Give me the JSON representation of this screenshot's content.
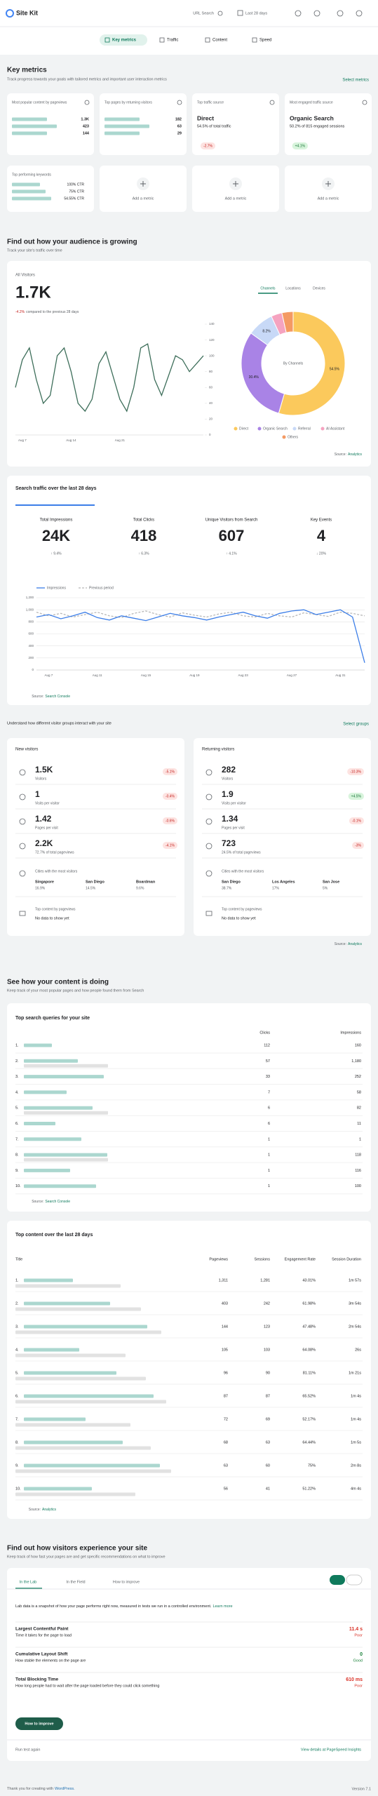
{
  "header": {
    "logo": "Site Kit",
    "url_search": "URL Search",
    "date_range": "Last 28 days"
  },
  "nav": [
    "Key metrics",
    "Traffic",
    "Content",
    "Speed"
  ],
  "key_metrics": {
    "title": "Key metrics",
    "subtitle": "Track progress towards your goals with tailored metrics and important user interaction metrics",
    "action": "Select metrics",
    "popular_content": {
      "title": "Most popular content by pageviews",
      "values": [
        "1.3K",
        "423",
        "144"
      ]
    },
    "returning_pages": {
      "title": "Top pages by returning visitors",
      "values": [
        "182",
        "63",
        "29"
      ]
    },
    "top_source": {
      "title": "Top traffic source",
      "value": "Direct",
      "detail": "54.5% of total traffic",
      "change": "-2.7%"
    },
    "engaged_source": {
      "title": "Most engaged traffic source",
      "value": "Organic Search",
      "detail": "50.2% of 815 engaged sessions",
      "change": "+4.1%"
    },
    "keywords": {
      "title": "Top performing keywords",
      "values": [
        "100% CTR",
        "75% CTR",
        "54.55% CTR"
      ]
    },
    "add_metric": [
      "Add a metric",
      "Add a metric",
      "Add a metric"
    ]
  },
  "audience": {
    "title": "Find out how your audience is growing",
    "subtitle": "Track your site's traffic over time",
    "visitors_label": "All Visitors",
    "visitors": "1.7K",
    "change": "-4.2%",
    "change_note": "compared to the previous 28 days",
    "tabs": [
      "Channels",
      "Locations",
      "Devices"
    ],
    "source_label": "Source:",
    "source": "Analytics"
  },
  "chart_data": [
    {
      "type": "line",
      "color": "#3d6e5a",
      "y_axis": "right",
      "grid": false,
      "categories": [
        null,
        "Aug 7",
        null,
        null,
        null,
        null,
        null,
        null,
        "Aug 14",
        null,
        null,
        null,
        null,
        null,
        null,
        "Aug 21",
        null,
        null,
        null,
        null,
        null,
        null,
        null,
        null,
        null,
        null,
        null,
        null
      ],
      "values": [
        60,
        95,
        110,
        70,
        40,
        50,
        100,
        110,
        80,
        40,
        30,
        45,
        90,
        105,
        75,
        45,
        30,
        60,
        110,
        115,
        70,
        50,
        75,
        100,
        95,
        80,
        90,
        100
      ],
      "ylim": [
        0,
        140
      ],
      "yticks": [
        0,
        20,
        40,
        60,
        80,
        100,
        120,
        140
      ]
    },
    {
      "type": "pie",
      "center_label": "By Channels",
      "categories": [
        "Direct",
        "Organic Search",
        "Referral",
        "AI Assistant",
        "Others"
      ],
      "values": [
        54.5,
        30.4,
        8.2,
        3.4,
        3.5
      ],
      "value_labels": [
        "54.5%",
        "30.4%",
        "8.2%",
        null,
        null
      ],
      "colors": [
        "#fbc95c",
        "#a983e6",
        "#c8d9f7",
        "#f5a3c0",
        "#f49a63"
      ]
    },
    {
      "type": "line",
      "grid": true,
      "y_axis": "left",
      "categories": [
        null,
        "Aug 7",
        null,
        null,
        null,
        "Aug 11",
        null,
        null,
        null,
        "Aug 15",
        null,
        null,
        null,
        "Aug 19",
        null,
        null,
        null,
        "Aug 23",
        null,
        null,
        null,
        "Aug 27",
        null,
        null,
        null,
        "Aug 31",
        null,
        null
      ],
      "series": [
        {
          "name": "Impressions",
          "color": "#3c7ee8",
          "values": [
            880,
            920,
            850,
            900,
            960,
            870,
            830,
            900,
            860,
            820,
            880,
            940,
            900,
            870,
            830,
            880,
            920,
            960,
            900,
            860,
            940,
            980,
            1000,
            920,
            960,
            1000,
            880,
            120
          ]
        },
        {
          "name": "Previous period",
          "color": "#b8b8b8",
          "dashed": true,
          "values": [
            960,
            900,
            940,
            880,
            920,
            960,
            900,
            870,
            940,
            980,
            920,
            880,
            950,
            910,
            880,
            930,
            960,
            900,
            880,
            940,
            900,
            880,
            950,
            920,
            890,
            960,
            940,
            900
          ]
        }
      ],
      "ylim": [
        0,
        1200
      ],
      "yticks": [
        0,
        200,
        400,
        600,
        800,
        {
          "value": 1000,
          "label": "1,000"
        },
        {
          "value": 1200,
          "label": "1,200"
        }
      ]
    }
  ],
  "search_traffic": {
    "title": "Search traffic over the last 28 days",
    "metrics": [
      {
        "label": "Total Impressions",
        "value": "24K",
        "change": "↑ 9.4%"
      },
      {
        "label": "Total Clicks",
        "value": "418",
        "change": "↑ 6.3%"
      },
      {
        "label": "Unique Visitors from Search",
        "value": "607",
        "change": "↑ 4.1%"
      },
      {
        "label": "Key Events",
        "value": "4",
        "change": "↓ 20%"
      }
    ],
    "source_label": "Source:",
    "source": "Search Console"
  },
  "groups": {
    "subtitle": "Understand how different visitor groups interact with your site",
    "action": "Select groups",
    "cards": [
      {
        "title": "New visitors",
        "metrics": [
          {
            "value": "1.5K",
            "label": "Visitors",
            "change": "-5.1%"
          },
          {
            "value": "1",
            "label": "Visits per visitor",
            "change": "-0.4%"
          },
          {
            "value": "1.42",
            "label": "Pages per visit",
            "change": "-0.6%"
          },
          {
            "value": "2.2K",
            "label": "72.7% of total pageviews",
            "change": "-4.1%"
          }
        ],
        "cities_title": "Cities with the most visitors",
        "cities": [
          {
            "name": "Singapore",
            "share": "16.9%"
          },
          {
            "name": "San Diego",
            "share": "14.5%"
          },
          {
            "name": "Boardman",
            "share": "9.6%"
          }
        ],
        "content_title": "Top content by pageviews",
        "content_empty": "No data to show yet"
      },
      {
        "title": "Returning visitors",
        "metrics": [
          {
            "value": "282",
            "label": "Visitors",
            "change": "-10.3%"
          },
          {
            "value": "1.9",
            "label": "Visits per visitor",
            "change": "+4.5%"
          },
          {
            "value": "1.34",
            "label": "Pages per visit",
            "change": "-0.1%"
          },
          {
            "value": "723",
            "label": "24.5% of total pageviews",
            "change": "-3%"
          }
        ],
        "cities_title": "Cities with the most visitors",
        "cities": [
          {
            "name": "San Diego",
            "share": "38.7%"
          },
          {
            "name": "Los Angeles",
            "share": "17%"
          },
          {
            "name": "San Jose",
            "share": "5%"
          }
        ],
        "content_title": "Top content by pageviews",
        "content_empty": "No data to show yet"
      }
    ],
    "source_label": "Source:",
    "source": "Analytics"
  },
  "content": {
    "title": "See how your content is doing",
    "subtitle": "Keep track of your most popular pages and how people found them from Search",
    "queries": {
      "title": "Top search queries for your site",
      "columns": [
        "Clicks",
        "Impressions"
      ],
      "rows": [
        [
          "1.",
          "112",
          "160"
        ],
        [
          "2.",
          "57",
          "1,180"
        ],
        [
          "3.",
          "33",
          "252"
        ],
        [
          "4.",
          "7",
          "58"
        ],
        [
          "5.",
          "6",
          "82"
        ],
        [
          "6.",
          "6",
          "11"
        ],
        [
          "7.",
          "1",
          "1"
        ],
        [
          "8.",
          "1",
          "118"
        ],
        [
          "9.",
          "1",
          "116"
        ],
        [
          "10.",
          "1",
          "100"
        ]
      ],
      "source_label": "Source:",
      "source": "Search Console"
    },
    "top_content": {
      "title": "Top content over the last 28 days",
      "columns": [
        "Title",
        "Pageviews",
        "Sessions",
        "Engagement Rate",
        "Session Duration"
      ],
      "rows": [
        [
          "1.",
          "1,311",
          "1,281",
          "43.01%",
          "1m 57s"
        ],
        [
          "2.",
          "403",
          "242",
          "61.98%",
          "3m 54s"
        ],
        [
          "3.",
          "144",
          "123",
          "47.48%",
          "2m 54s"
        ],
        [
          "4.",
          "105",
          "103",
          "64.08%",
          "26s"
        ],
        [
          "5.",
          "96",
          "90",
          "81.11%",
          "1m 21s"
        ],
        [
          "6.",
          "87",
          "87",
          "65.52%",
          "1m 4s"
        ],
        [
          "7.",
          "72",
          "69",
          "52.17%",
          "1m 4s"
        ],
        [
          "8.",
          "68",
          "63",
          "64.44%",
          "1m 5s"
        ],
        [
          "9.",
          "63",
          "60",
          "75%",
          "2m 8s"
        ],
        [
          "10.",
          "56",
          "41",
          "51.22%",
          "4m 4s"
        ]
      ],
      "source_label": "Source:",
      "source": "Analytics"
    }
  },
  "speed": {
    "title": "Find out how visitors experience your site",
    "subtitle": "Keep track of how fast your pages are and get specific recommendations on what to improve",
    "tabs": [
      "In the Lab",
      "In the Field",
      "How to improve"
    ],
    "description": "Lab data is a snapshot of how your page performs right now, measured in tests we run in a controlled environment.",
    "learn_more": "Learn more",
    "metrics": [
      {
        "name": "Largest Contentful Paint",
        "description": "Time it takes for the page to load",
        "value": "11.4 s",
        "status": "Poor"
      },
      {
        "name": "Cumulative Layout Shift",
        "description": "How stable the elements on the page are",
        "value": "0",
        "status": "Good"
      },
      {
        "name": "Total Blocking Time",
        "description": "How long people had to wait after the page loaded before they could click something",
        "value": "610 ms",
        "status": "Poor"
      }
    ],
    "button": "How to improve",
    "rerun": "Run test again",
    "details": "View details at PageSpeed Insights"
  },
  "footer": {
    "text": "Thank you for creating with",
    "link": "WordPress.",
    "version": "Version 7.1"
  }
}
